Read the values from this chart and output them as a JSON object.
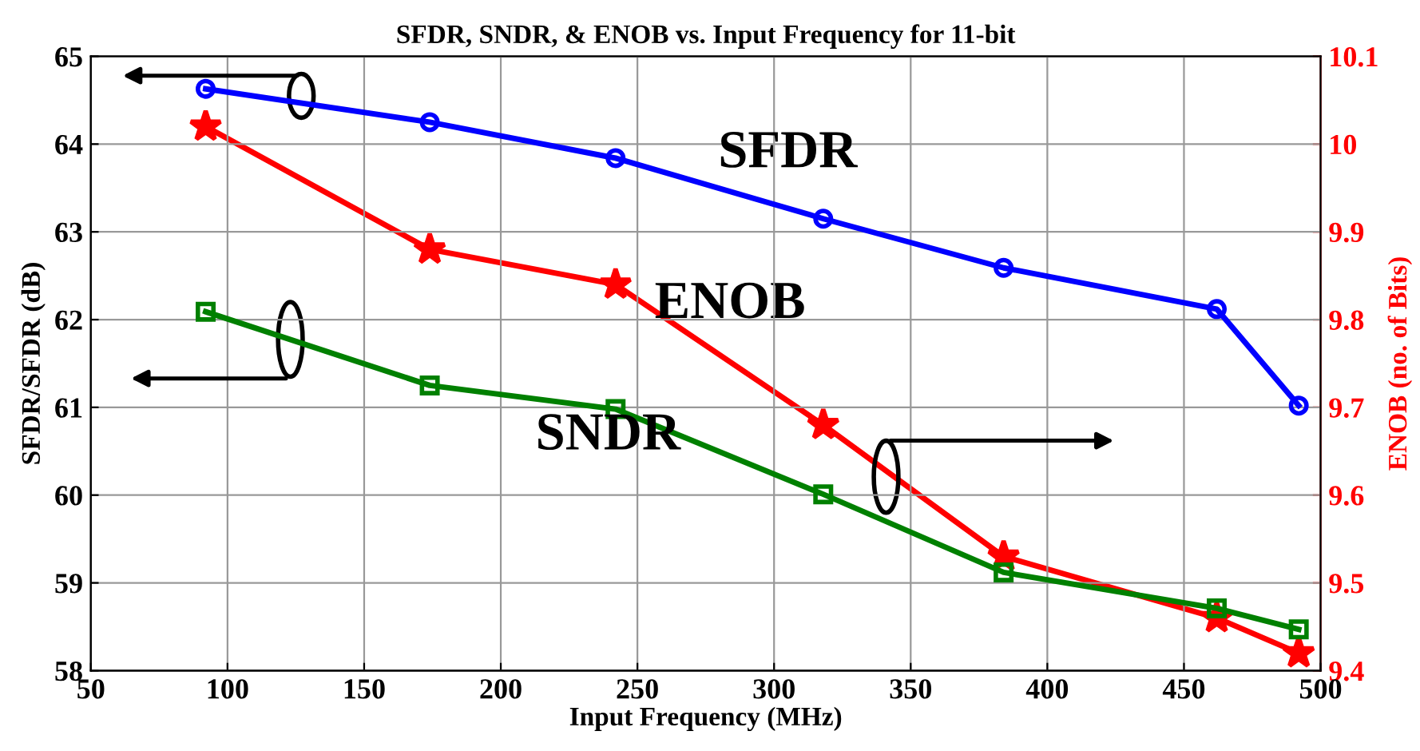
{
  "chart_data": {
    "type": "line",
    "title": "SFDR, SNDR, & ENOB vs. Input Frequency for 11-bit",
    "xlabel": "Input Frequency (MHz)",
    "ylabel": "SFDR/SFDR (dB)",
    "y2label": "ENOB (no. of Bits)",
    "x": [
      92,
      174,
      242,
      318,
      384,
      462,
      492
    ],
    "series": [
      {
        "name": "SFDR",
        "color": "#0000ff",
        "marker": "circle",
        "values": [
          64.63,
          64.25,
          63.84,
          63.15,
          62.59,
          62.12,
          61.02
        ]
      },
      {
        "name": "SNDR",
        "color": "#008000",
        "marker": "square",
        "values": [
          62.09,
          61.25,
          60.98,
          60.01,
          59.12,
          58.71,
          58.47
        ]
      },
      {
        "name": "ENOB",
        "color": "#ff0000",
        "marker": "star",
        "axis": "y2",
        "values": [
          10.02,
          9.88,
          9.84,
          9.68,
          9.53,
          9.46,
          9.42
        ]
      }
    ],
    "xlim": [
      50,
      500
    ],
    "xticks": [
      50,
      100,
      150,
      200,
      250,
      300,
      350,
      400,
      450,
      500
    ],
    "ylim": [
      58,
      65
    ],
    "yticks": [
      58,
      59,
      60,
      61,
      62,
      63,
      64,
      65
    ],
    "y2lim": [
      9.4,
      10.1
    ],
    "y2ticks": [
      9.4,
      9.5,
      9.6,
      9.7,
      9.8,
      9.9,
      10,
      10.1
    ],
    "grid": true,
    "legend": false,
    "line_style": "solid"
  }
}
